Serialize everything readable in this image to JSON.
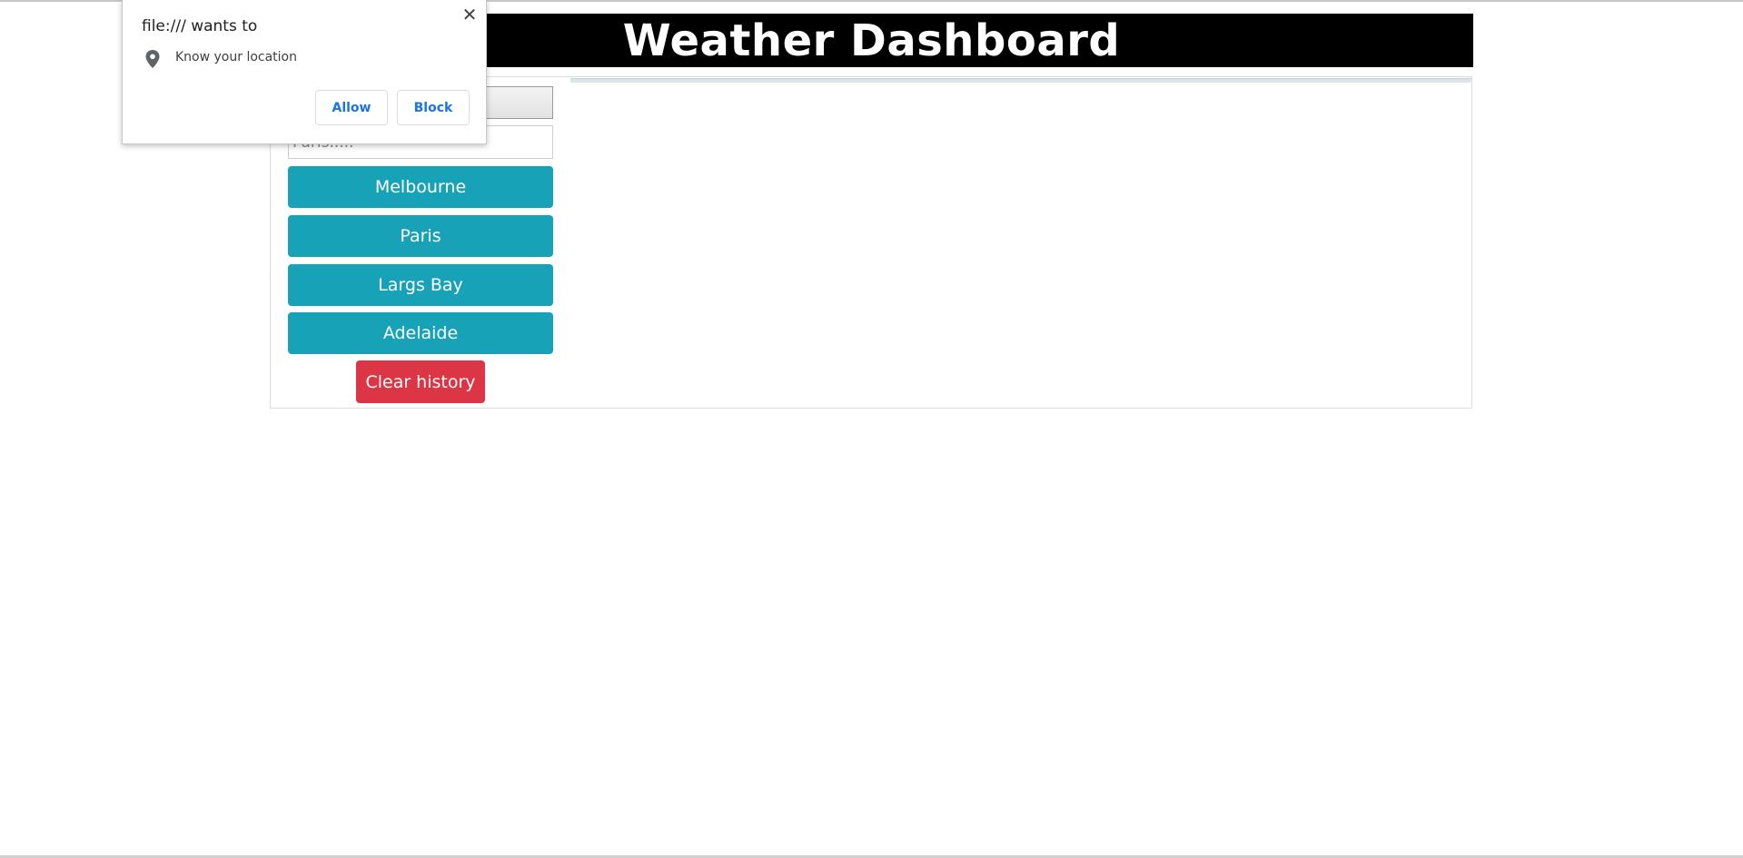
{
  "header": {
    "title": "Weather Dashboard"
  },
  "search": {
    "placeholder": "Paris.....",
    "value": ""
  },
  "history": {
    "cities": [
      "Melbourne",
      "Paris",
      "Largs Bay",
      "Adelaide"
    ],
    "clear_label": "Clear history"
  },
  "permission_popup": {
    "title": "file:/// wants to",
    "permission": "Know your location",
    "allow_label": "Allow",
    "block_label": "Block",
    "close_glyph": "✕",
    "icon": "location-pin-icon"
  },
  "colors": {
    "header_bg": "#000000",
    "city_button": "#17a2b8",
    "clear_button": "#dc3545",
    "popup_button_text": "#1a73e8"
  }
}
